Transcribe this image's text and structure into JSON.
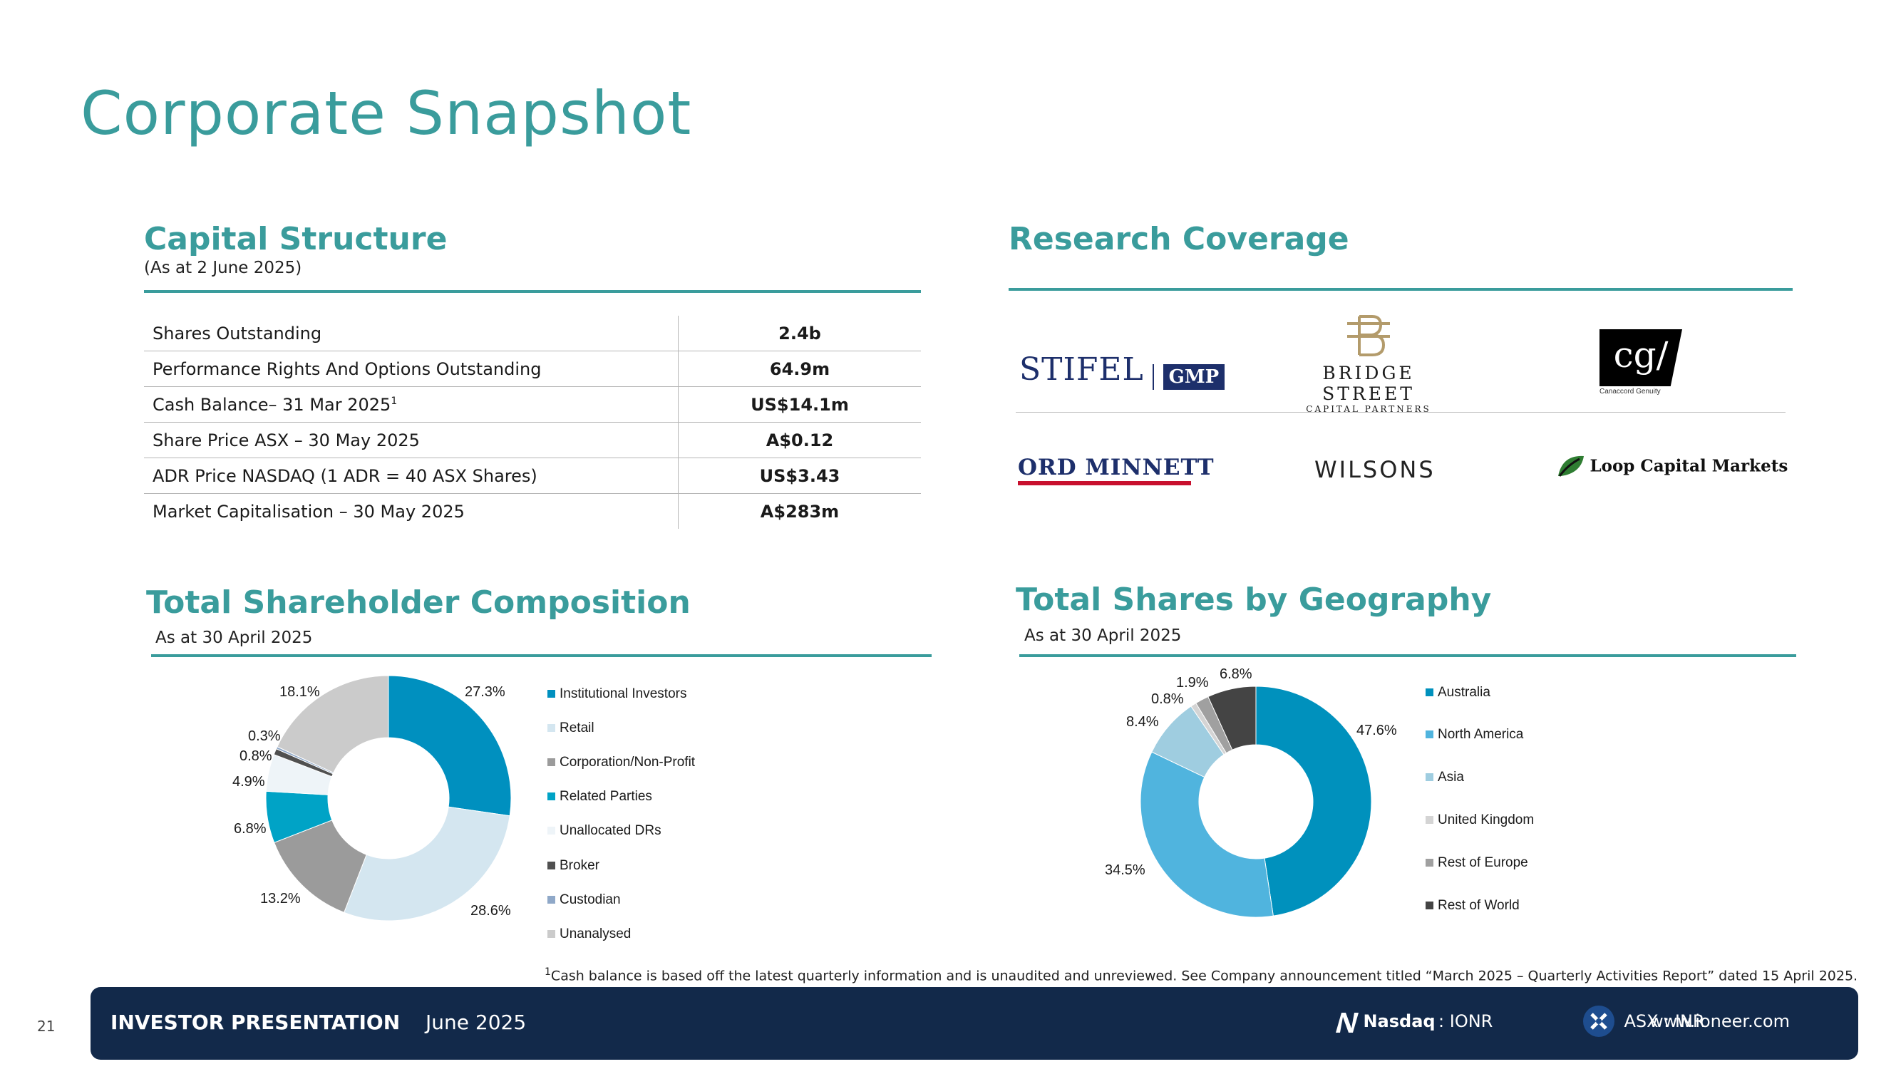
{
  "page": {
    "title": "Corporate Snapshot",
    "page_number": "21"
  },
  "capital_structure": {
    "title": "Capital Structure",
    "subtitle": "(As at 2 June 2025)",
    "rows": [
      {
        "label": "Shares Outstanding",
        "sup": "",
        "value": "2.4b"
      },
      {
        "label": "Performance Rights And Options Outstanding",
        "sup": "",
        "value": "64.9m"
      },
      {
        "label": "Cash Balance– 31 Mar 2025",
        "sup": "1",
        "value": "US$14.1m"
      },
      {
        "label": "Share Price ASX – 30 May 2025",
        "sup": "",
        "value": "A$0.12"
      },
      {
        "label": "ADR Price NASDAQ (1 ADR = 40 ASX Shares)",
        "sup": "",
        "value": "US$3.43"
      },
      {
        "label": "Market Capitalisation – 30 May 2025",
        "sup": "",
        "value": "A$283m"
      }
    ]
  },
  "research_coverage": {
    "title": "Research Coverage",
    "logos": {
      "stifel": "STIFEL",
      "gmp": "GMP",
      "bridge_street": "BRIDGE STREET",
      "bridge_street_sub": "CAPITAL PARTNERS",
      "canaccord": "cg/",
      "canaccord_sub": "Canaccord Genuity",
      "ord_minnett": "ORD MINNETT",
      "wilsons": "WILSONS",
      "loop": "Loop Capital Markets"
    }
  },
  "chart_data": [
    {
      "type": "pie",
      "title": "Total Shareholder Composition",
      "subtitle": "As at 30 April 2025",
      "donut": true,
      "categories": [
        "Institutional Investors",
        "Retail",
        "Corporation/Non-Profit",
        "Related Parties",
        "Unallocated DRs",
        "Broker",
        "Custodian",
        "Unanalysed"
      ],
      "values": [
        27.3,
        28.6,
        13.2,
        6.8,
        4.9,
        0.8,
        0.3,
        18.1
      ],
      "labels": [
        "27.3%",
        "28.6%",
        "13.2%",
        "6.8%",
        "4.9%",
        "0.8%",
        "0.3%",
        "18.1%"
      ],
      "colors": [
        "#0090bf",
        "#d4e6f0",
        "#9b9b9b",
        "#00a3c6",
        "#eef4f8",
        "#505050",
        "#8fa8c8",
        "#cbcbcb"
      ],
      "legend": "right"
    },
    {
      "type": "pie",
      "title": "Total Shares by Geography",
      "subtitle": "As at 30 April 2025",
      "donut": true,
      "categories": [
        "Australia",
        "North America",
        "Asia",
        "United Kingdom",
        "Rest of Europe",
        "Rest of World"
      ],
      "values": [
        47.6,
        34.5,
        8.4,
        0.8,
        1.9,
        6.8
      ],
      "labels": [
        "47.6%",
        "34.5%",
        "8.4%",
        "0.8%",
        "1.9%",
        "6.8%"
      ],
      "colors": [
        "#0091bd",
        "#50b4de",
        "#9fcde0",
        "#d4d4d4",
        "#a0a0a0",
        "#444444"
      ],
      "legend": "right"
    }
  ],
  "footnote": {
    "sup": "1",
    "text": "Cash balance is based off the latest quarterly information and is unaudited and unreviewed. See Company announcement titled “March 2025 – Quarterly Activities Report” dated 15 April 2025."
  },
  "footer": {
    "label": "INVESTOR PRESENTATION",
    "date": "June 2025",
    "nasdaq_brand": "Nasdaq",
    "nasdaq_ticker": ": IONR",
    "asx": "ASX : INR",
    "website": "www.ioneer.com"
  }
}
